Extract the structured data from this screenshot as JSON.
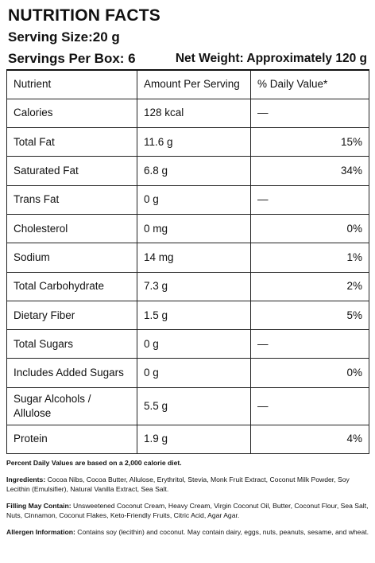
{
  "header": {
    "title": "NUTRITION FACTS",
    "serving_size": "Serving Size:20 g",
    "servings_per_box": "Servings Per Box: 6",
    "net_weight": "Net Weight: Approximately 120 g"
  },
  "table": {
    "columns": [
      "Nutrient",
      "Amount Per Serving",
      "% Daily Value*"
    ],
    "rows": [
      {
        "nutrient": "Calories",
        "amount": "128 kcal",
        "dv": "—"
      },
      {
        "nutrient": "Total Fat",
        "amount": "11.6 g",
        "dv": "15%"
      },
      {
        "nutrient": "Saturated Fat",
        "amount": "6.8 g",
        "dv": "34%"
      },
      {
        "nutrient": "Trans Fat",
        "amount": "0 g",
        "dv": "—"
      },
      {
        "nutrient": "Cholesterol",
        "amount": "0 mg",
        "dv": "0%"
      },
      {
        "nutrient": "Sodium",
        "amount": "14 mg",
        "dv": "1%"
      },
      {
        "nutrient": "Total Carbohydrate",
        "amount": "7.3 g",
        "dv": "2%"
      },
      {
        "nutrient": "Dietary Fiber",
        "amount": "1.5 g",
        "dv": "5%"
      },
      {
        "nutrient": "Total Sugars",
        "amount": "0 g",
        "dv": "—"
      },
      {
        "nutrient": "Includes Added Sugars",
        "amount": "0 g",
        "dv": "0%"
      },
      {
        "nutrient": "Sugar Alcohols / Allulose",
        "amount": "5.5 g",
        "dv": "—"
      },
      {
        "nutrient": "Protein",
        "amount": "1.9 g",
        "dv": "4%"
      }
    ]
  },
  "footnotes": {
    "pdv_note": "Percent Daily Values are based on a 2,000 calorie diet.",
    "ingredients_label": "Ingredients:",
    "ingredients_text": "Cocoa Nibs, Cocoa Butter, Allulose, Erythritol, Stevia, Monk Fruit Extract, Coconut Milk Powder, Soy Lecithin (Emulsifier), Natural Vanilla Extract, Sea Salt.",
    "filling_label": "Filling May Contain:",
    "filling_text": "Unsweetened Coconut Cream, Heavy Cream, Virgin Coconut Oil, Butter, Coconut Flour, Sea Salt, Nuts, Cinnamon, Coconut Flakes, Keto-Friendly Fruits, Citric Acid, Agar Agar.",
    "allergen_label": "Allergen Information:",
    "allergen_text": "Contains soy (lecithin) and coconut. May contain dairy, eggs, nuts, peanuts, sesame, and wheat."
  }
}
